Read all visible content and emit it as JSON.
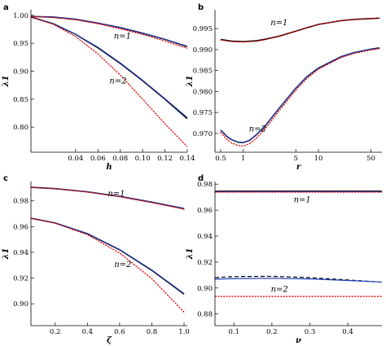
{
  "chart_data": [
    {
      "type": "line",
      "panel": "a",
      "xlabel": "h",
      "ylabel": "λ1",
      "xlim": [
        0.0,
        0.14
      ],
      "ylim": [
        0.755,
        1.01
      ],
      "xticks": [
        0.04,
        0.06,
        0.08,
        0.1,
        0.12,
        0.14
      ],
      "xtick_labels": [
        "0.04",
        "0.06",
        "0.08",
        "0.10",
        "0.12",
        "0.14"
      ],
      "yticks": [
        0.8,
        0.85,
        0.9,
        0.95,
        1.0
      ],
      "ytick_labels": [
        "0.80",
        "0.85",
        "0.90",
        "0.95",
        "1.00"
      ],
      "annotations": [
        {
          "text": "n=1",
          "x": 0.082,
          "y": 0.958
        },
        {
          "text": "n=2",
          "x": 0.078,
          "y": 0.878
        }
      ],
      "series": [
        {
          "color": "#000000",
          "dash": "solid",
          "width": 1.6,
          "x": [
            0,
            0.02,
            0.04,
            0.06,
            0.08,
            0.1,
            0.12,
            0.14
          ],
          "y": [
            0.998,
            0.997,
            0.993,
            0.986,
            0.978,
            0.968,
            0.957,
            0.944
          ]
        },
        {
          "color": "#1f3fbf",
          "dash": "solid",
          "width": 1.0,
          "x": [
            0,
            0.02,
            0.04,
            0.06,
            0.08,
            0.1,
            0.12,
            0.14
          ],
          "y": [
            0.998,
            0.997,
            0.993,
            0.986,
            0.978,
            0.968,
            0.957,
            0.945
          ]
        },
        {
          "color": "#e00000",
          "dash": "dot",
          "width": 1.2,
          "x": [
            0,
            0.02,
            0.04,
            0.06,
            0.08,
            0.1,
            0.12,
            0.14
          ],
          "y": [
            0.998,
            0.996,
            0.992,
            0.985,
            0.976,
            0.966,
            0.954,
            0.941
          ]
        },
        {
          "color": "#000000",
          "dash": "solid",
          "width": 1.6,
          "x": [
            0,
            0.02,
            0.04,
            0.06,
            0.08,
            0.1,
            0.12,
            0.14
          ],
          "y": [
            0.997,
            0.985,
            0.966,
            0.942,
            0.914,
            0.883,
            0.85,
            0.815
          ]
        },
        {
          "color": "#1f3fbf",
          "dash": "solid",
          "width": 1.0,
          "x": [
            0,
            0.02,
            0.04,
            0.06,
            0.08,
            0.1,
            0.12,
            0.14
          ],
          "y": [
            0.997,
            0.985,
            0.966,
            0.943,
            0.915,
            0.884,
            0.851,
            0.817
          ]
        },
        {
          "color": "#e00000",
          "dash": "dot",
          "width": 1.2,
          "x": [
            0,
            0.02,
            0.04,
            0.06,
            0.08,
            0.1,
            0.12,
            0.14
          ],
          "y": [
            0.997,
            0.984,
            0.962,
            0.931,
            0.893,
            0.85,
            0.806,
            0.765
          ]
        }
      ]
    },
    {
      "type": "line",
      "panel": "b",
      "xscale": "log",
      "xlabel": "r",
      "ylabel": "λ1",
      "xlim": [
        0.42,
        70
      ],
      "ylim": [
        0.9655,
        0.9995
      ],
      "xticks": [
        0.5,
        1,
        5,
        10,
        50
      ],
      "xtick_labels": [
        "0.5",
        "1",
        "5",
        "10",
        "50"
      ],
      "yticks": [
        0.97,
        0.975,
        0.98,
        0.985,
        0.99,
        0.995
      ],
      "ytick_labels": [
        "0.970",
        "0.975",
        "0.980",
        "0.985",
        "0.990",
        "0.995"
      ],
      "annotations": [
        {
          "text": "n=1",
          "x": 3.0,
          "y": 0.9958
        },
        {
          "text": "n=2",
          "x": 1.55,
          "y": 0.9705
        }
      ],
      "series": [
        {
          "color": "#000000",
          "dash": "solid",
          "width": 1.6,
          "x": [
            0.5,
            0.7,
            1,
            1.5,
            2,
            3,
            5,
            7,
            10,
            20,
            30,
            50,
            65
          ],
          "y": [
            0.9924,
            0.992,
            0.9919,
            0.9921,
            0.9925,
            0.9932,
            0.9944,
            0.9952,
            0.996,
            0.9969,
            0.9972,
            0.9974,
            0.9975
          ]
        },
        {
          "color": "#e00000",
          "dash": "dot",
          "width": 1.2,
          "x": [
            0.5,
            0.7,
            1,
            1.5,
            2,
            3,
            5,
            7,
            10,
            20,
            30,
            50,
            65
          ],
          "y": [
            0.9923,
            0.9919,
            0.9918,
            0.992,
            0.9924,
            0.9932,
            0.9944,
            0.9952,
            0.996,
            0.9969,
            0.9972,
            0.9974,
            0.9975
          ]
        },
        {
          "color": "#000000",
          "dash": "solid",
          "width": 1.6,
          "x": [
            0.5,
            0.6,
            0.7,
            0.85,
            1,
            1.2,
            1.5,
            2,
            3,
            5,
            7,
            10,
            20,
            30,
            50,
            65
          ],
          "y": [
            0.9708,
            0.9693,
            0.9685,
            0.9679,
            0.9678,
            0.9683,
            0.9697,
            0.972,
            0.976,
            0.9808,
            0.9835,
            0.9856,
            0.9883,
            0.9893,
            0.9901,
            0.9904
          ]
        },
        {
          "color": "#1f3fbf",
          "dash": "solid",
          "width": 1.0,
          "x": [
            0.5,
            0.6,
            0.7,
            0.85,
            1,
            1.2,
            1.5,
            2,
            3,
            5,
            7,
            10,
            20,
            30,
            50,
            65
          ],
          "y": [
            0.9708,
            0.9693,
            0.9685,
            0.9679,
            0.9678,
            0.9683,
            0.9697,
            0.972,
            0.976,
            0.9808,
            0.9835,
            0.9856,
            0.9883,
            0.9893,
            0.9901,
            0.9904
          ]
        },
        {
          "color": "#e00000",
          "dash": "dot",
          "width": 1.2,
          "x": [
            0.5,
            0.6,
            0.7,
            0.85,
            1,
            1.2,
            1.5,
            2,
            3,
            5,
            7,
            10,
            20,
            30,
            50,
            65
          ],
          "y": [
            0.9702,
            0.9686,
            0.9677,
            0.9671,
            0.967,
            0.9675,
            0.9689,
            0.9713,
            0.9754,
            0.9803,
            0.9831,
            0.9853,
            0.9881,
            0.9891,
            0.9899,
            0.9902
          ]
        }
      ]
    },
    {
      "type": "line",
      "panel": "c",
      "xlabel": "ζ",
      "ylabel": "λ1",
      "xlim": [
        0.05,
        1.02
      ],
      "ylim": [
        0.883,
        0.995
      ],
      "xticks": [
        0.2,
        0.4,
        0.6,
        0.8,
        1.0
      ],
      "xtick_labels": [
        "0.2",
        "0.4",
        "0.6",
        "0.8",
        "1.0"
      ],
      "yticks": [
        0.9,
        0.92,
        0.94,
        0.96,
        0.98
      ],
      "ytick_labels": [
        "0.90",
        "0.92",
        "0.94",
        "0.96",
        "0.98"
      ],
      "annotations": [
        {
          "text": "n=1",
          "x": 0.58,
          "y": 0.9835
        },
        {
          "text": "n=2",
          "x": 0.62,
          "y": 0.9285
        }
      ],
      "series": [
        {
          "color": "#000000",
          "dash": "solid",
          "width": 1.6,
          "x": [
            0.05,
            0.2,
            0.4,
            0.6,
            0.8,
            1.0
          ],
          "y": [
            0.9905,
            0.9895,
            0.987,
            0.9835,
            0.979,
            0.974
          ]
        },
        {
          "color": "#1f3fbf",
          "dash": "solid",
          "width": 1.0,
          "x": [
            0.05,
            0.2,
            0.4,
            0.6,
            0.8,
            1.0
          ],
          "y": [
            0.9905,
            0.9895,
            0.987,
            0.9835,
            0.979,
            0.9742
          ]
        },
        {
          "color": "#e00000",
          "dash": "dot",
          "width": 1.2,
          "x": [
            0.05,
            0.2,
            0.4,
            0.6,
            0.8,
            1.0
          ],
          "y": [
            0.9905,
            0.9894,
            0.9868,
            0.9832,
            0.9786,
            0.9735
          ]
        },
        {
          "color": "#000000",
          "dash": "solid",
          "width": 1.6,
          "x": [
            0.05,
            0.2,
            0.4,
            0.6,
            0.8,
            1.0
          ],
          "y": [
            0.9665,
            0.9628,
            0.9545,
            0.942,
            0.926,
            0.9075
          ]
        },
        {
          "color": "#1f3fbf",
          "dash": "solid",
          "width": 1.0,
          "x": [
            0.05,
            0.2,
            0.4,
            0.6,
            0.8,
            1.0
          ],
          "y": [
            0.9665,
            0.9628,
            0.9546,
            0.9422,
            0.9263,
            0.908
          ]
        },
        {
          "color": "#e00000",
          "dash": "dot",
          "width": 1.2,
          "x": [
            0.05,
            0.2,
            0.4,
            0.6,
            0.8,
            1.0
          ],
          "y": [
            0.9665,
            0.9626,
            0.9537,
            0.9395,
            0.9195,
            0.8935
          ]
        }
      ]
    },
    {
      "type": "line",
      "panel": "d",
      "xlabel": "ν",
      "ylabel": "λ1",
      "xlim": [
        0.05,
        0.49
      ],
      "ylim": [
        0.871,
        0.982
      ],
      "xticks": [
        0.1,
        0.2,
        0.3,
        0.4
      ],
      "xtick_labels": [
        "0.1",
        "0.2",
        "0.3",
        "0.4"
      ],
      "yticks": [
        0.88,
        0.9,
        0.92,
        0.94,
        0.96,
        0.98
      ],
      "ytick_labels": [
        "0.88",
        "0.90",
        "0.92",
        "0.94",
        "0.96",
        "0.98"
      ],
      "annotations": [
        {
          "text": "n=1",
          "x": 0.28,
          "y": 0.966
        },
        {
          "text": "n=2",
          "x": 0.22,
          "y": 0.897
        }
      ],
      "series": [
        {
          "color": "#000000",
          "dash": "solid",
          "width": 1.6,
          "x": [
            0.05,
            0.49
          ],
          "y": [
            0.9745,
            0.9745
          ]
        },
        {
          "color": "#1f3fbf",
          "dash": "solid",
          "width": 1.0,
          "x": [
            0.05,
            0.49
          ],
          "y": [
            0.9742,
            0.9742
          ]
        },
        {
          "color": "#e00000",
          "dash": "dot",
          "width": 1.2,
          "x": [
            0.05,
            0.49
          ],
          "y": [
            0.9738,
            0.9738
          ]
        },
        {
          "color": "#000000",
          "dash": "dash",
          "width": 1.2,
          "x": [
            0.05,
            0.1,
            0.2,
            0.3,
            0.4,
            0.49
          ],
          "y": [
            0.908,
            0.9088,
            0.909,
            0.908,
            0.9062,
            0.9045
          ]
        },
        {
          "color": "#1f3fbf",
          "dash": "solid",
          "width": 1.2,
          "x": [
            0.05,
            0.1,
            0.2,
            0.3,
            0.4,
            0.49
          ],
          "y": [
            0.9068,
            0.9072,
            0.9075,
            0.907,
            0.9058,
            0.9045
          ]
        },
        {
          "color": "#e00000",
          "dash": "dot",
          "width": 1.2,
          "x": [
            0.05,
            0.49
          ],
          "y": [
            0.8935,
            0.8935
          ]
        }
      ]
    }
  ]
}
